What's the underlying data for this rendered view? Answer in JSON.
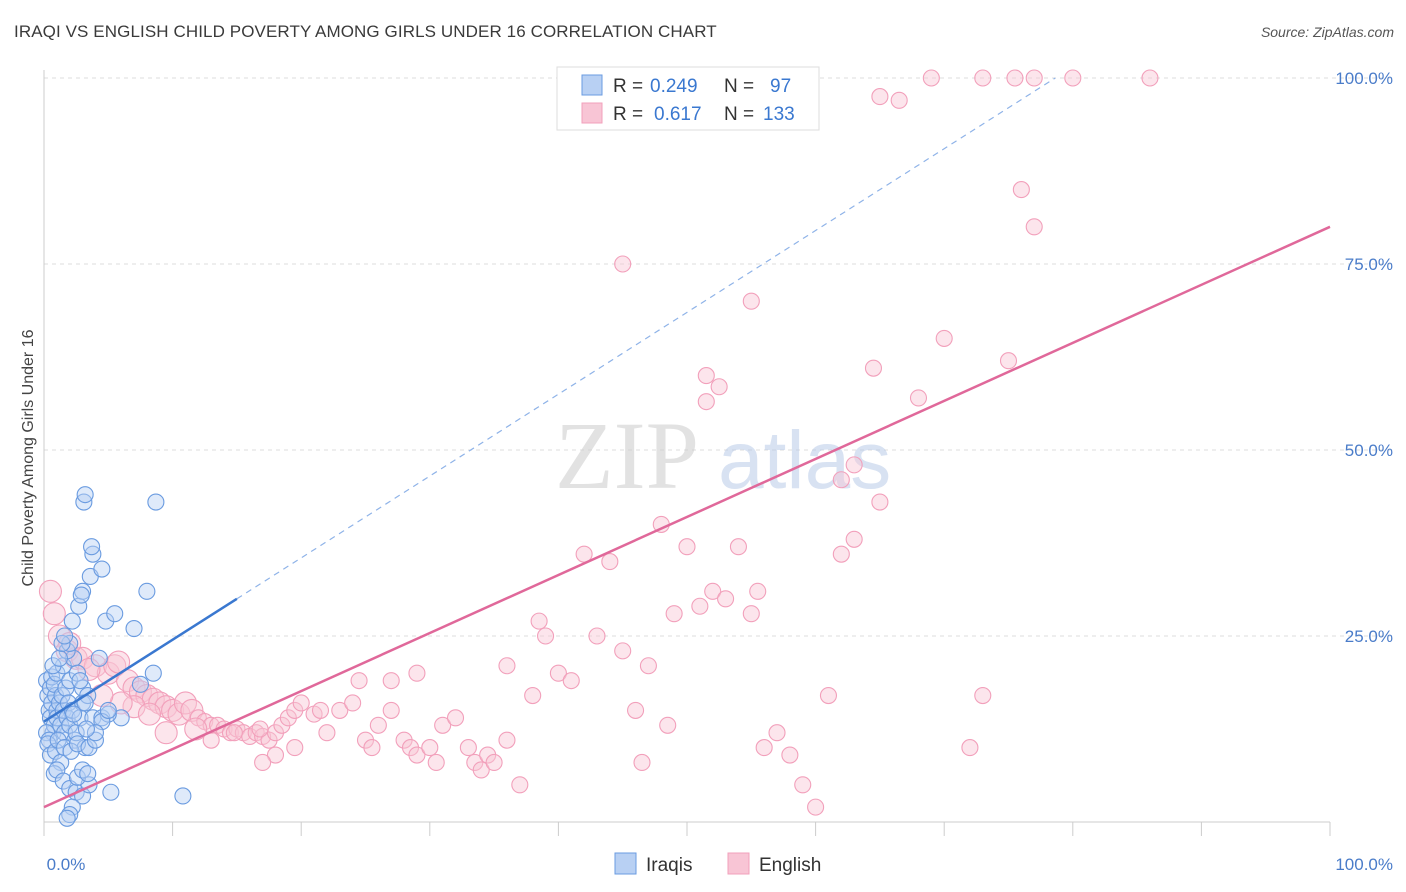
{
  "chart_data": {
    "type": "scatter",
    "title": "IRAQI VS ENGLISH CHILD POVERTY AMONG GIRLS UNDER 16 CORRELATION CHART",
    "source": "Source: ZipAtlas.com",
    "ylabel": "Child Poverty Among Girls Under 16",
    "xlabel": "",
    "xlim": [
      0,
      100
    ],
    "ylim": [
      0,
      100
    ],
    "x_tick_labels": [
      "0.0%",
      "100.0%"
    ],
    "y_tick_labels": [
      "25.0%",
      "50.0%",
      "75.0%",
      "100.0%"
    ],
    "y_ticks": [
      25,
      50,
      75,
      100
    ],
    "watermark": {
      "zip": "ZIP",
      "atlas": "atlas"
    },
    "colors": {
      "iraqis": "#6a9be0",
      "english": "#f2a0bb",
      "iraqis_line": "#3a78d0",
      "english_line": "#e0689a",
      "tick": "#4a7cc9"
    },
    "legend": {
      "rows": [
        {
          "r_label": "R =",
          "r_value": "0.249",
          "n_label": "N =",
          "n_value": "97"
        },
        {
          "r_label": "R =",
          "r_value": "0.617",
          "n_label": "N =",
          "n_value": "133"
        }
      ]
    },
    "series": [
      {
        "name": "Iraqis",
        "regression": {
          "x0": 0,
          "y0": 13.5,
          "x1": 15,
          "y1": 30
        },
        "points": [
          [
            0.2,
            19
          ],
          [
            0.3,
            17
          ],
          [
            0.4,
            15
          ],
          [
            0.5,
            18
          ],
          [
            0.5,
            14
          ],
          [
            0.6,
            16
          ],
          [
            0.7,
            12
          ],
          [
            0.8,
            13
          ],
          [
            0.9,
            17
          ],
          [
            1.0,
            15
          ],
          [
            0.2,
            12
          ],
          [
            0.4,
            11
          ],
          [
            0.6,
            19.5
          ],
          [
            0.8,
            18.5
          ],
          [
            1.0,
            14
          ],
          [
            1.2,
            16
          ],
          [
            1.3,
            13
          ],
          [
            1.5,
            15
          ],
          [
            1.6,
            12
          ],
          [
            1.8,
            14
          ],
          [
            1.4,
            17
          ],
          [
            1.7,
            18
          ],
          [
            1.9,
            16
          ],
          [
            2.0,
            13
          ],
          [
            2.2,
            15
          ],
          [
            2.4,
            11
          ],
          [
            2.5,
            12
          ],
          [
            2.8,
            14
          ],
          [
            3.0,
            16
          ],
          [
            3.2,
            10
          ],
          [
            0.3,
            10.5
          ],
          [
            0.5,
            9
          ],
          [
            0.9,
            9.5
          ],
          [
            1.1,
            11
          ],
          [
            1.3,
            8
          ],
          [
            1.6,
            10
          ],
          [
            2.1,
            9.5
          ],
          [
            2.6,
            10.5
          ],
          [
            3.5,
            10
          ],
          [
            4.0,
            11
          ],
          [
            1.0,
            20
          ],
          [
            1.5,
            21
          ],
          [
            2.0,
            19
          ],
          [
            2.3,
            22
          ],
          [
            2.6,
            20
          ],
          [
            3.0,
            18
          ],
          [
            3.4,
            17
          ],
          [
            3.8,
            14
          ],
          [
            4.5,
            14
          ],
          [
            4.3,
            22
          ],
          [
            1.8,
            23
          ],
          [
            2.0,
            24
          ],
          [
            2.2,
            27
          ],
          [
            2.7,
            29
          ],
          [
            3.0,
            31
          ],
          [
            2.9,
            30.5
          ],
          [
            3.6,
            33
          ],
          [
            3.8,
            36
          ],
          [
            3.7,
            37
          ],
          [
            4.5,
            34
          ],
          [
            4.8,
            27
          ],
          [
            5.5,
            28
          ],
          [
            7.0,
            26
          ],
          [
            8.0,
            31
          ],
          [
            8.5,
            20
          ],
          [
            7.5,
            18.5
          ],
          [
            6.0,
            14
          ],
          [
            5.0,
            14.5
          ],
          [
            4.5,
            13.5
          ],
          [
            3.2,
            16
          ],
          [
            3.1,
            43
          ],
          [
            3.2,
            44
          ],
          [
            8.7,
            43
          ],
          [
            0.8,
            6.5
          ],
          [
            1.0,
            7
          ],
          [
            1.5,
            5.5
          ],
          [
            2.0,
            4.5
          ],
          [
            2.5,
            4
          ],
          [
            3.0,
            3.5
          ],
          [
            3.5,
            5
          ],
          [
            2.2,
            2
          ],
          [
            2.0,
            1
          ],
          [
            1.8,
            0.5
          ],
          [
            2.6,
            6
          ],
          [
            3.0,
            7
          ],
          [
            3.4,
            6.5
          ],
          [
            5.2,
            4
          ],
          [
            10.8,
            3.5
          ],
          [
            4.0,
            12
          ],
          [
            5.0,
            15
          ],
          [
            0.7,
            21
          ],
          [
            1.2,
            22
          ],
          [
            1.4,
            24
          ],
          [
            1.6,
            25
          ],
          [
            2.8,
            19
          ],
          [
            3.3,
            12.5
          ],
          [
            2.3,
            14.5
          ]
        ]
      },
      {
        "name": "English",
        "regression": {
          "x0": 0,
          "y0": 2,
          "x1": 100,
          "y1": 80
        },
        "points": [
          [
            0.5,
            31
          ],
          [
            0.8,
            28
          ],
          [
            1.2,
            25
          ],
          [
            1.8,
            23
          ],
          [
            2.5,
            22
          ],
          [
            3.0,
            22
          ],
          [
            4.0,
            21
          ],
          [
            5.0,
            20
          ],
          [
            5.5,
            21
          ],
          [
            6.5,
            19
          ],
          [
            7.0,
            18
          ],
          [
            7.5,
            17.5
          ],
          [
            8.0,
            17
          ],
          [
            8.5,
            16.5
          ],
          [
            9.0,
            16
          ],
          [
            9.5,
            15.5
          ],
          [
            10.0,
            15
          ],
          [
            10.5,
            14.5
          ],
          [
            11.0,
            16
          ],
          [
            11.5,
            15
          ],
          [
            12.0,
            14
          ],
          [
            12.5,
            13.5
          ],
          [
            13.0,
            13
          ],
          [
            13.5,
            13
          ],
          [
            14.0,
            12.5
          ],
          [
            14.5,
            12
          ],
          [
            15.0,
            12.5
          ],
          [
            15.5,
            12
          ],
          [
            16.0,
            11.5
          ],
          [
            16.5,
            12
          ],
          [
            17.0,
            11.5
          ],
          [
            17.5,
            11
          ],
          [
            18.0,
            12
          ],
          [
            18.5,
            13
          ],
          [
            19.0,
            14
          ],
          [
            19.5,
            15
          ],
          [
            20.0,
            16
          ],
          [
            21.0,
            14.5
          ],
          [
            22.0,
            12
          ],
          [
            23.0,
            15
          ],
          [
            24.0,
            16
          ],
          [
            25.0,
            11
          ],
          [
            25.5,
            10
          ],
          [
            26.0,
            13
          ],
          [
            27.0,
            15
          ],
          [
            28.0,
            11
          ],
          [
            28.5,
            10
          ],
          [
            29.0,
            9
          ],
          [
            30.0,
            10
          ],
          [
            30.5,
            8
          ],
          [
            31.0,
            13
          ],
          [
            32.0,
            14
          ],
          [
            33.0,
            10
          ],
          [
            33.5,
            8
          ],
          [
            34.0,
            7
          ],
          [
            34.5,
            9
          ],
          [
            35.0,
            8
          ],
          [
            36.0,
            11
          ],
          [
            37.0,
            5
          ],
          [
            38.0,
            17
          ],
          [
            38.5,
            27
          ],
          [
            39.0,
            25
          ],
          [
            40.0,
            20
          ],
          [
            41.0,
            19
          ],
          [
            42.0,
            36
          ],
          [
            43.0,
            25
          ],
          [
            44.0,
            35
          ],
          [
            45.0,
            23
          ],
          [
            46.0,
            15
          ],
          [
            46.5,
            8
          ],
          [
            47.0,
            21
          ],
          [
            48.0,
            40
          ],
          [
            48.5,
            13
          ],
          [
            49.0,
            28
          ],
          [
            50.0,
            37
          ],
          [
            51.0,
            29
          ],
          [
            52.0,
            31
          ],
          [
            53.0,
            30
          ],
          [
            54.0,
            37
          ],
          [
            55.0,
            28
          ],
          [
            55.5,
            31
          ],
          [
            56.0,
            10
          ],
          [
            57.0,
            12
          ],
          [
            58.0,
            9
          ],
          [
            59.0,
            5
          ],
          [
            60.0,
            2
          ],
          [
            61.0,
            17
          ],
          [
            62.0,
            36
          ],
          [
            63.0,
            38
          ],
          [
            65.0,
            43
          ],
          [
            68.0,
            57
          ],
          [
            70.0,
            65
          ],
          [
            72.0,
            10
          ],
          [
            73.0,
            17
          ],
          [
            75.0,
            62
          ],
          [
            76.0,
            85
          ],
          [
            77.0,
            80
          ],
          [
            64.5,
            61
          ],
          [
            51.5,
            56.5
          ],
          [
            52.5,
            58.5
          ],
          [
            51.5,
            60
          ],
          [
            55.0,
            70
          ],
          [
            45.0,
            75
          ],
          [
            63.0,
            48
          ],
          [
            62.0,
            46
          ],
          [
            36.0,
            21
          ],
          [
            29.0,
            20
          ],
          [
            27.0,
            19
          ],
          [
            24.5,
            19
          ],
          [
            21.5,
            15
          ],
          [
            19.5,
            10
          ],
          [
            18.0,
            9
          ],
          [
            17.0,
            8
          ],
          [
            13.0,
            11
          ],
          [
            9.5,
            12
          ],
          [
            7.0,
            15.5
          ],
          [
            6.0,
            16
          ],
          [
            4.5,
            17
          ],
          [
            3.5,
            20.5
          ],
          [
            2.0,
            24
          ],
          [
            5.8,
            21.5
          ],
          [
            8.2,
            14.5
          ],
          [
            11.8,
            12.5
          ],
          [
            14.8,
            12
          ],
          [
            16.8,
            12.5
          ],
          [
            66.5,
            97
          ],
          [
            65.0,
            97.5
          ],
          [
            69.0,
            100
          ],
          [
            73.0,
            100
          ],
          [
            75.5,
            100
          ],
          [
            77.0,
            100
          ],
          [
            80.0,
            100
          ],
          [
            86.0,
            100
          ]
        ]
      }
    ]
  }
}
